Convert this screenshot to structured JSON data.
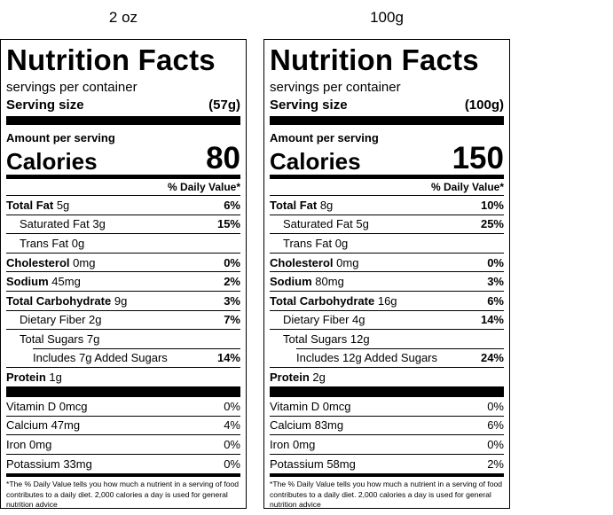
{
  "labels": [
    {
      "caption": "2 oz",
      "title": "Nutrition Facts",
      "servings": "servings per container",
      "serving_size_label": "Serving size",
      "serving_size": "(57g)",
      "amount_per_serving": "Amount per serving",
      "calories_label": "Calories",
      "calories": "80",
      "dv_header": "% Daily Value*",
      "nutrients": [
        {
          "name": "Total Fat",
          "amount": "5g",
          "dv": "6%"
        },
        {
          "name": "Saturated Fat",
          "amount": "3g",
          "dv": "15%"
        },
        {
          "name": "Trans Fat",
          "amount": "0g"
        },
        {
          "name": "Cholesterol",
          "amount": "0mg",
          "dv": "0%"
        },
        {
          "name": "Sodium",
          "amount": "45mg",
          "dv": "2%"
        },
        {
          "name": "Total Carbohydrate",
          "amount": "9g",
          "dv": "3%"
        },
        {
          "name": "Dietary Fiber",
          "amount": "2g",
          "dv": "7%"
        },
        {
          "name": "Total Sugars",
          "amount": "7g"
        },
        {
          "name": "Includes 7g Added Sugars",
          "dv": "14%"
        },
        {
          "name": "Protein",
          "amount": "1g"
        }
      ],
      "vitamins": [
        {
          "name": "Vitamin D",
          "amount": "0mcg",
          "dv": "0%"
        },
        {
          "name": "Calcium",
          "amount": "47mg",
          "dv": "4%"
        },
        {
          "name": "Iron",
          "amount": "0mg",
          "dv": "0%"
        },
        {
          "name": "Potassium",
          "amount": "33mg",
          "dv": "0%"
        }
      ],
      "footnote": "*The % Daily Value tells you how much a nutrient in a serving of food contributes to a daily diet. 2,000 calories a day is used for general nutrition advice"
    },
    {
      "caption": "100g",
      "title": "Nutrition Facts",
      "servings": "servings per container",
      "serving_size_label": "Serving size",
      "serving_size": "(100g)",
      "amount_per_serving": "Amount per serving",
      "calories_label": "Calories",
      "calories": "150",
      "dv_header": "% Daily Value*",
      "nutrients": [
        {
          "name": "Total Fat",
          "amount": "8g",
          "dv": "10%"
        },
        {
          "name": "Saturated Fat",
          "amount": "5g",
          "dv": "25%"
        },
        {
          "name": "Trans Fat",
          "amount": "0g"
        },
        {
          "name": "Cholesterol",
          "amount": "0mg",
          "dv": "0%"
        },
        {
          "name": "Sodium",
          "amount": "80mg",
          "dv": "3%"
        },
        {
          "name": "Total Carbohydrate",
          "amount": "16g",
          "dv": "6%"
        },
        {
          "name": "Dietary Fiber",
          "amount": "4g",
          "dv": "14%"
        },
        {
          "name": "Total Sugars",
          "amount": "12g"
        },
        {
          "name": "Includes 12g Added Sugars",
          "dv": "24%"
        },
        {
          "name": "Protein",
          "amount": "2g"
        }
      ],
      "vitamins": [
        {
          "name": "Vitamin D",
          "amount": "0mcg",
          "dv": "0%"
        },
        {
          "name": "Calcium",
          "amount": "83mg",
          "dv": "6%"
        },
        {
          "name": "Iron",
          "amount": "0mg",
          "dv": "0%"
        },
        {
          "name": "Potassium",
          "amount": "58mg",
          "dv": "2%"
        }
      ],
      "footnote": "*The % Daily Value tells you how much a nutrient in a serving of food contributes to a daily diet. 2,000 calories a day is used for general nutrition advice"
    }
  ]
}
